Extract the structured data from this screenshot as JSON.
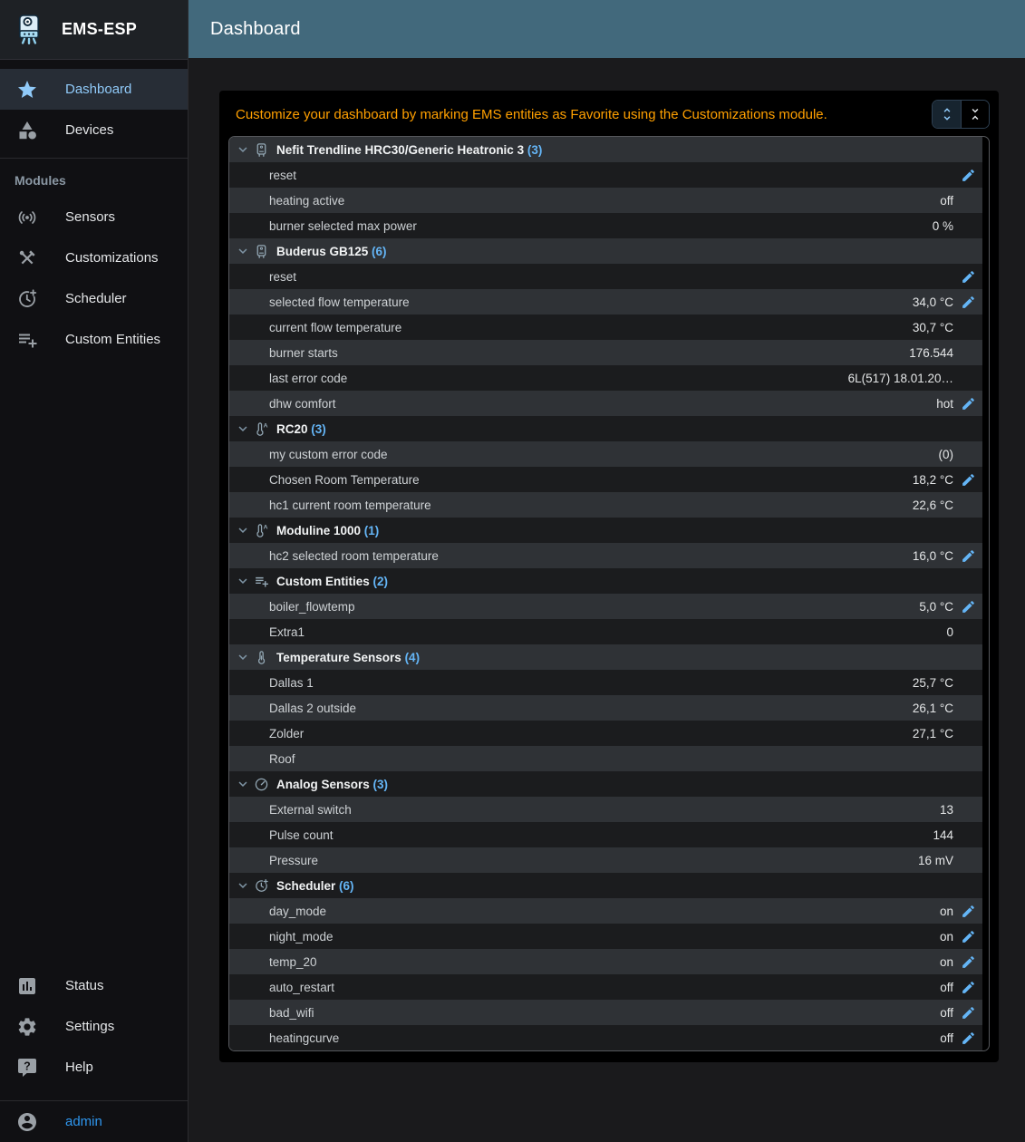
{
  "app": {
    "title": "EMS-ESP"
  },
  "appbar": {
    "title": "Dashboard"
  },
  "sidebar": {
    "main_items": [
      {
        "label": "Dashboard",
        "icon": "star-icon",
        "active": true
      },
      {
        "label": "Devices",
        "icon": "category-icon",
        "active": false
      }
    ],
    "modules_label": "Modules",
    "module_items": [
      {
        "label": "Sensors",
        "icon": "sensors-icon"
      },
      {
        "label": "Customizations",
        "icon": "tools-icon"
      },
      {
        "label": "Scheduler",
        "icon": "clock-plus-icon"
      },
      {
        "label": "Custom Entities",
        "icon": "playlist-add-icon"
      }
    ],
    "bottom_items": [
      {
        "label": "Status",
        "icon": "bar-chart-icon"
      },
      {
        "label": "Settings",
        "icon": "gear-icon"
      },
      {
        "label": "Help",
        "icon": "help-bubble-icon"
      }
    ],
    "user": {
      "label": "admin",
      "icon": "account-icon"
    }
  },
  "notice": {
    "text": "Customize your dashboard by marking EMS entities as Favorite using the Customizations module.",
    "buttons": [
      {
        "name": "expand-all",
        "icon": "unfold-more-icon",
        "selected": true
      },
      {
        "name": "collapse-all",
        "icon": "unfold-less-icon",
        "selected": false
      }
    ]
  },
  "dashboard": {
    "groups": [
      {
        "name": "Nefit Trendline HRC30/Generic Heatronic 3",
        "count": "3",
        "icon": "boiler-icon",
        "entities": [
          {
            "name": "reset",
            "value": "",
            "editable": true
          },
          {
            "name": "heating active",
            "value": "off",
            "editable": false
          },
          {
            "name": "burner selected max power",
            "value": "0 %",
            "editable": false
          }
        ]
      },
      {
        "name": "Buderus GB125",
        "count": "6",
        "icon": "boiler-icon",
        "entities": [
          {
            "name": "reset",
            "value": "",
            "editable": true
          },
          {
            "name": "selected flow temperature",
            "value": "34,0 °C",
            "editable": true
          },
          {
            "name": "current flow temperature",
            "value": "30,7 °C",
            "editable": false
          },
          {
            "name": "burner starts",
            "value": "176.544",
            "editable": false
          },
          {
            "name": "last error code",
            "value": "6L(517) 18.01.20…",
            "editable": false
          },
          {
            "name": "dhw comfort",
            "value": "hot",
            "editable": true
          }
        ]
      },
      {
        "name": "RC20",
        "count": "3",
        "icon": "thermostat-icon",
        "entities": [
          {
            "name": "my custom error code",
            "value": "(0)",
            "editable": false
          },
          {
            "name": "Chosen Room Temperature",
            "value": "18,2 °C",
            "editable": true
          },
          {
            "name": "hc1 current room temperature",
            "value": "22,6 °C",
            "editable": false
          }
        ]
      },
      {
        "name": "Moduline 1000",
        "count": "1",
        "icon": "thermostat-icon",
        "entities": [
          {
            "name": "hc2 selected room temperature",
            "value": "16,0 °C",
            "editable": true
          }
        ]
      },
      {
        "name": "Custom Entities",
        "count": "2",
        "icon": "playlist-add-icon",
        "entities": [
          {
            "name": "boiler_flowtemp",
            "value": "5,0 °C",
            "editable": true
          },
          {
            "name": "Extra1",
            "value": "0",
            "editable": false
          }
        ]
      },
      {
        "name": "Temperature Sensors",
        "count": "4",
        "icon": "thermometer-icon",
        "entities": [
          {
            "name": "Dallas 1",
            "value": "25,7 °C",
            "editable": false
          },
          {
            "name": "Dallas 2 outside",
            "value": "26,1 °C",
            "editable": false
          },
          {
            "name": "Zolder",
            "value": "27,1 °C",
            "editable": false
          },
          {
            "name": "Roof",
            "value": "",
            "editable": false
          }
        ]
      },
      {
        "name": "Analog Sensors",
        "count": "3",
        "icon": "gauge-icon",
        "entities": [
          {
            "name": "External switch",
            "value": "13",
            "editable": false
          },
          {
            "name": "Pulse count",
            "value": "144",
            "editable": false
          },
          {
            "name": "Pressure",
            "value": "16 mV",
            "editable": false
          }
        ]
      },
      {
        "name": "Scheduler",
        "count": "6",
        "icon": "clock-plus-icon",
        "entities": [
          {
            "name": "day_mode",
            "value": "on",
            "editable": true
          },
          {
            "name": "night_mode",
            "value": "on",
            "editable": true
          },
          {
            "name": "temp_20",
            "value": "on",
            "editable": true
          },
          {
            "name": "auto_restart",
            "value": "off",
            "editable": true
          },
          {
            "name": "bad_wifi",
            "value": "off",
            "editable": true
          },
          {
            "name": "heatingcurve",
            "value": "off",
            "editable": true
          }
        ]
      }
    ]
  },
  "colors": {
    "appbar": "#42697c",
    "accent_blue": "#64b5f6",
    "sidebar_active_blue": "#90caf9",
    "notice_orange": "#ffa000",
    "row_light": "#2f3236",
    "row_dark": "#1b1c1e"
  }
}
